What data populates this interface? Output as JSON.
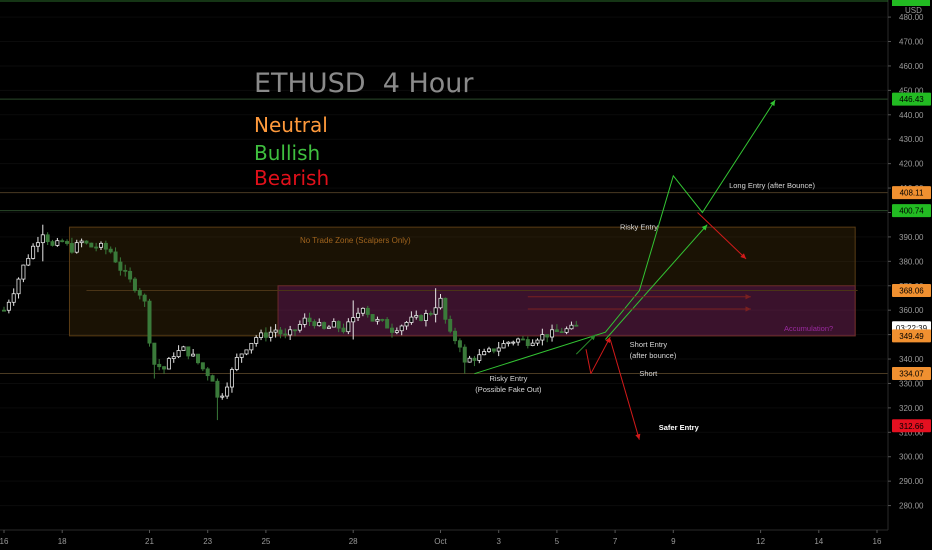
{
  "header": {
    "title": "ETHUSD  4 Hour",
    "legend": [
      {
        "label": "Neutral",
        "color": "#ff9a3c"
      },
      {
        "label": "Bullish",
        "color": "#3fbf3f"
      },
      {
        "label": "Bearish",
        "color": "#e0101a"
      }
    ]
  },
  "chart_data": {
    "type": "candlestick",
    "currency": "USD",
    "ylim": [
      270,
      487
    ],
    "y_ticks": [
      280,
      290,
      300,
      310,
      320,
      330,
      340,
      350,
      360,
      370,
      380,
      390,
      400,
      410,
      420,
      430,
      440,
      450,
      460,
      470,
      480
    ],
    "x_ticks": [
      {
        "label": "16",
        "i": 0
      },
      {
        "label": "18",
        "i": 12
      },
      {
        "label": "21",
        "i": 30
      },
      {
        "label": "23",
        "i": 42
      },
      {
        "label": "25",
        "i": 54
      },
      {
        "label": "28",
        "i": 72
      },
      {
        "label": "Oct",
        "i": 90
      },
      {
        "label": "3",
        "i": 102
      },
      {
        "label": "5",
        "i": 114
      },
      {
        "label": "7",
        "i": 126
      },
      {
        "label": "9",
        "i": 138
      },
      {
        "label": "12",
        "i": 156
      },
      {
        "label": "14",
        "i": 168
      },
      {
        "label": "16",
        "i": 180
      }
    ],
    "series_close_anchors": [
      [
        0,
        360
      ],
      [
        2,
        368
      ],
      [
        4,
        378
      ],
      [
        6,
        386
      ],
      [
        8,
        392
      ],
      [
        10,
        386
      ],
      [
        12,
        388
      ],
      [
        14,
        385
      ],
      [
        16,
        388
      ],
      [
        18,
        386
      ],
      [
        20,
        386
      ],
      [
        22,
        384
      ],
      [
        24,
        377
      ],
      [
        26,
        372
      ],
      [
        28,
        367
      ],
      [
        29,
        363
      ],
      [
        30,
        348
      ],
      [
        31,
        338
      ],
      [
        33,
        336
      ],
      [
        35,
        342
      ],
      [
        37,
        344
      ],
      [
        39,
        341
      ],
      [
        41,
        336
      ],
      [
        42,
        334
      ],
      [
        43,
        332
      ],
      [
        44,
        324
      ],
      [
        45,
        326
      ],
      [
        46,
        330
      ],
      [
        48,
        340
      ],
      [
        50,
        345
      ],
      [
        52,
        349
      ],
      [
        54,
        350
      ],
      [
        56,
        352
      ],
      [
        58,
        349
      ],
      [
        60,
        352
      ],
      [
        62,
        356
      ],
      [
        64,
        355
      ],
      [
        66,
        352
      ],
      [
        68,
        354
      ],
      [
        70,
        352
      ],
      [
        72,
        356
      ],
      [
        74,
        362
      ],
      [
        76,
        356
      ],
      [
        78,
        355
      ],
      [
        80,
        352
      ],
      [
        82,
        354
      ],
      [
        84,
        356
      ],
      [
        86,
        357
      ],
      [
        88,
        359
      ],
      [
        89,
        362
      ],
      [
        90,
        364
      ],
      [
        91,
        356
      ],
      [
        92,
        350
      ],
      [
        94,
        346
      ],
      [
        95,
        338
      ],
      [
        96,
        340
      ],
      [
        98,
        341
      ],
      [
        100,
        343
      ],
      [
        102,
        345
      ],
      [
        104,
        347
      ],
      [
        106,
        348
      ],
      [
        108,
        347
      ],
      [
        110,
        349
      ],
      [
        112,
        350
      ],
      [
        114,
        351
      ],
      [
        116,
        352
      ],
      [
        118,
        353
      ]
    ],
    "series_wicks": [
      [
        8,
        380,
        395
      ],
      [
        31,
        332,
        345
      ],
      [
        44,
        315,
        332
      ],
      [
        72,
        348,
        364
      ],
      [
        89,
        355,
        369
      ],
      [
        95,
        334,
        346
      ]
    ],
    "zones": [
      {
        "label": "No Trade Zone (Scalpers Only)",
        "type": "neutral",
        "i1": 13.5,
        "i2": 175.5,
        "y1": 349.5,
        "y2": 394
      },
      {
        "label": "Accumulation?",
        "type": "purple",
        "i1": 56.5,
        "i2": 175.5,
        "y1": 349.5,
        "y2": 370
      }
    ],
    "price_tags": [
      {
        "label": "446.43",
        "value": 446.43,
        "color": "#22bb22"
      },
      {
        "label": "408.11",
        "value": 408.11,
        "color": "#f09030"
      },
      {
        "label": "400.74",
        "value": 400.74,
        "color": "#22bb22"
      },
      {
        "label": "368.06",
        "value": 368.06,
        "color": "#f09030"
      },
      {
        "label": "03:22:39",
        "value": 352.8,
        "color": "#ffffff"
      },
      {
        "label": "349.49",
        "value": 349.49,
        "color": "#f09030"
      },
      {
        "label": "334.07",
        "value": 334.07,
        "color": "#f09030"
      },
      {
        "label": "312.66",
        "value": 312.66,
        "color": "#e41020"
      }
    ],
    "level_lines": [
      {
        "value": 446.43,
        "color": "#2a4a2a"
      },
      {
        "value": 408.11,
        "color": "#4a3a22"
      },
      {
        "value": 400.74,
        "color": "#2a4a2a"
      },
      {
        "value": 334.07,
        "color": "#4a3a22"
      }
    ],
    "zone_mid_line": {
      "value": 368.06,
      "i1": 17,
      "i2": 176
    },
    "green_paths": [
      [
        [
          97,
          334
        ],
        [
          124,
          351
        ],
        [
          131,
          368
        ],
        [
          138,
          415
        ],
        [
          144,
          400
        ],
        [
          159,
          446
        ]
      ],
      [
        [
          124,
          348
        ],
        [
          145,
          395
        ]
      ]
    ],
    "red_paths": [
      [
        [
          143,
          400
        ],
        [
          153,
          381
        ]
      ],
      [
        [
          125,
          348
        ],
        [
          131,
          307
        ]
      ],
      [
        [
          121,
          334
        ],
        [
          125,
          349
        ]
      ]
    ],
    "green_dark_paths": [
      [
        [
          118,
          342
        ],
        [
          122,
          350
        ]
      ]
    ],
    "bullish_arrows": [
      {
        "value": 365.5,
        "i1": 108,
        "i2": 154
      },
      {
        "value": 360.5,
        "i1": 108,
        "i2": 154
      }
    ],
    "annotations": [
      {
        "text": "Long Entry (after Bounce)",
        "i": 149.5,
        "value": 410
      },
      {
        "text": "Risky Entry",
        "i": 127,
        "value": 393
      },
      {
        "text": "Short Entry",
        "i": 129,
        "value": 345
      },
      {
        "text": "(after bounce)",
        "i": 129,
        "value": 340.5
      },
      {
        "text": "Short",
        "i": 131,
        "value": 333
      },
      {
        "text": "Risky Entry",
        "i": 104,
        "value": 331
      },
      {
        "text": "(Possible Fake Out)",
        "i": 104,
        "value": 326.5
      },
      {
        "text": "Safer Entry",
        "i": 135,
        "value": 311
      }
    ]
  }
}
